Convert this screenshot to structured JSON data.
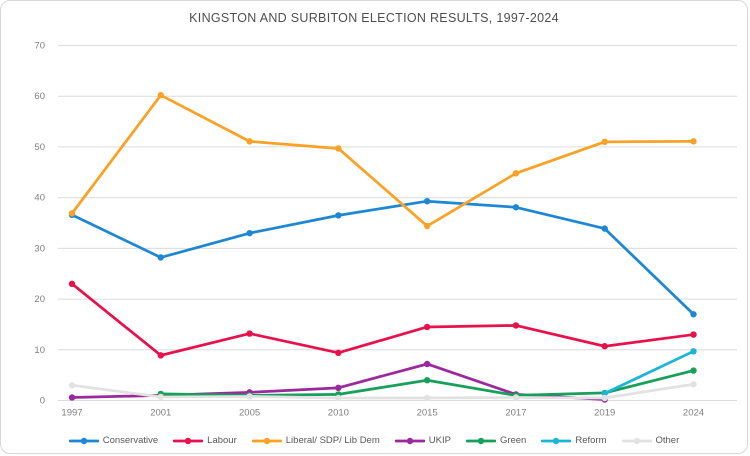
{
  "chart_data": {
    "type": "line",
    "title": "KINGSTON AND SURBITON ELECTION RESULTS, 1997-2024",
    "categories": [
      "1997",
      "2001",
      "2005",
      "2010",
      "2015",
      "2017",
      "2019",
      "2024"
    ],
    "series": [
      {
        "name": "Conservative",
        "color": "#1e87d5",
        "values": [
          36.6,
          28.2,
          33.0,
          36.5,
          39.3,
          38.1,
          33.9,
          17.0
        ]
      },
      {
        "name": "Labour",
        "color": "#e8114b",
        "values": [
          23.0,
          8.9,
          13.2,
          9.4,
          14.5,
          14.8,
          10.7,
          13.0
        ]
      },
      {
        "name": "Liberal/ SDP/ Lib Dem",
        "color": "#fba226",
        "values": [
          36.9,
          60.2,
          51.1,
          49.7,
          34.4,
          44.8,
          51.0,
          51.1
        ]
      },
      {
        "name": "UKIP",
        "color": "#9c28a0",
        "values": [
          0.6,
          1.0,
          1.6,
          2.5,
          7.2,
          1.2,
          0.2,
          null
        ]
      },
      {
        "name": "Green",
        "color": "#16a05a",
        "values": [
          null,
          1.3,
          1.0,
          1.2,
          4.0,
          1.0,
          1.5,
          5.9
        ]
      },
      {
        "name": "Reform",
        "color": "#1cb5d5",
        "values": [
          null,
          null,
          null,
          null,
          null,
          null,
          1.4,
          9.7
        ]
      },
      {
        "name": "Other",
        "color": "#e2e2e2",
        "values": [
          3.0,
          0.7,
          0.8,
          0.5,
          0.5,
          0.6,
          0.5,
          3.2
        ]
      }
    ],
    "y_axis": {
      "min": 0,
      "max": 70,
      "step": 10,
      "tick_labels": [
        "0",
        "10",
        "20",
        "30",
        "40",
        "50",
        "60",
        "70"
      ]
    },
    "x_axis_label_color_note": "gray category axis, no axis title",
    "grid": true,
    "legend_position": "bottom",
    "colors": {
      "gridline": "#dcdcdc",
      "tick_text": "#808080",
      "title_text": "#4f4f4f",
      "legend_text": "#595959",
      "background": "#ffffff"
    }
  }
}
